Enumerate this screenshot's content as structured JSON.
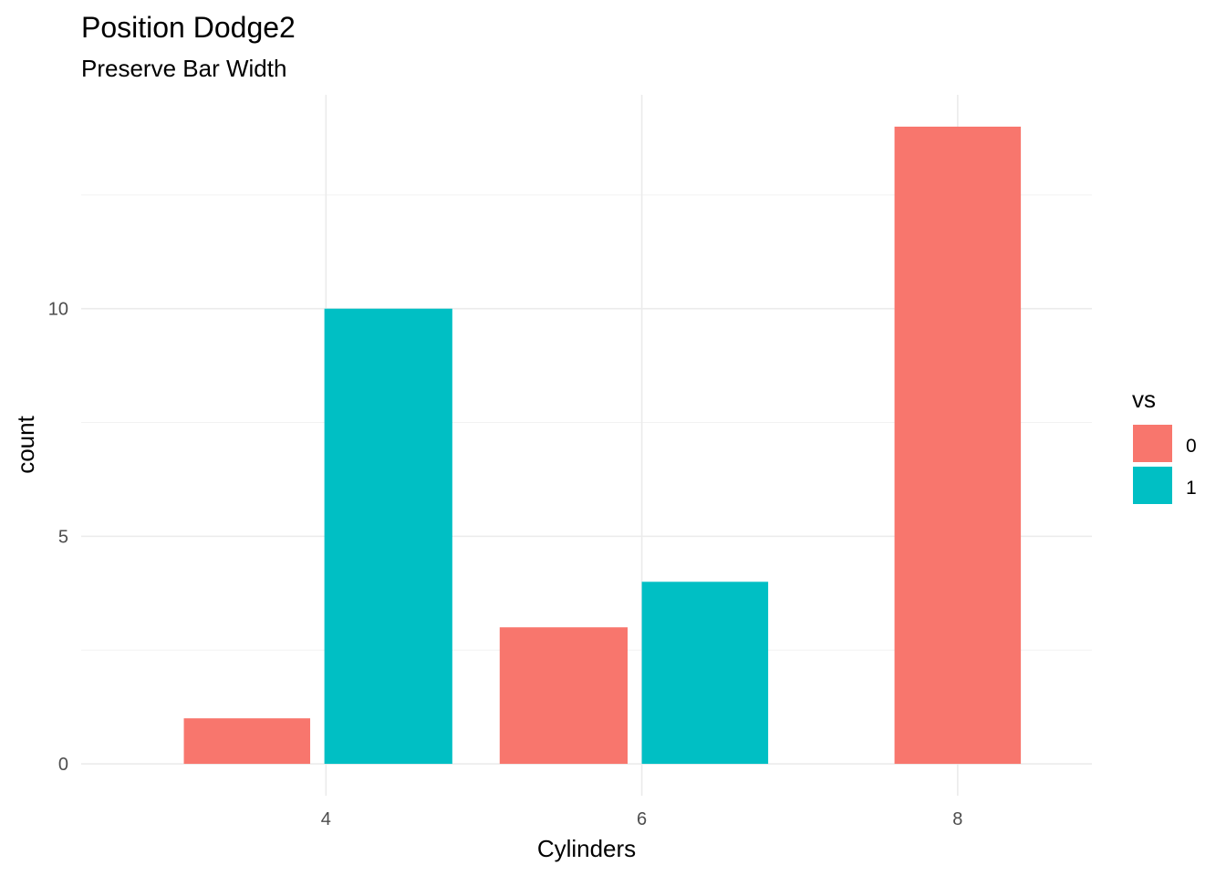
{
  "chart_data": {
    "type": "bar",
    "title": "Position Dodge2",
    "subtitle": "Preserve Bar Width",
    "xlabel": "Cylinders",
    "ylabel": "count",
    "x_ticks": [
      "4",
      "6",
      "8"
    ],
    "y_ticks": [
      "0",
      "5",
      "10"
    ],
    "x_range": [
      2.45,
      8.85
    ],
    "ylim": [
      -0.7,
      14.7
    ],
    "grid": true,
    "legend": {
      "title": "vs",
      "placement": "right",
      "entries": [
        {
          "label": "0",
          "color": "#F8766D"
        },
        {
          "label": "1",
          "color": "#00BFC4"
        }
      ]
    },
    "bars": [
      {
        "category": "4",
        "vs": "0",
        "value": 1,
        "x_min": 3.1,
        "x_max": 3.9,
        "color": "#F8766D"
      },
      {
        "category": "4",
        "vs": "1",
        "value": 10,
        "x_min": 3.99,
        "x_max": 4.8,
        "color": "#00BFC4"
      },
      {
        "category": "6",
        "vs": "0",
        "value": 3,
        "x_min": 5.1,
        "x_max": 5.91,
        "color": "#F8766D"
      },
      {
        "category": "6",
        "vs": "1",
        "value": 4,
        "x_min": 6.0,
        "x_max": 6.8,
        "color": "#00BFC4"
      },
      {
        "category": "8",
        "vs": "0",
        "value": 14,
        "x_min": 7.6,
        "x_max": 8.4,
        "color": "#F8766D"
      }
    ]
  }
}
